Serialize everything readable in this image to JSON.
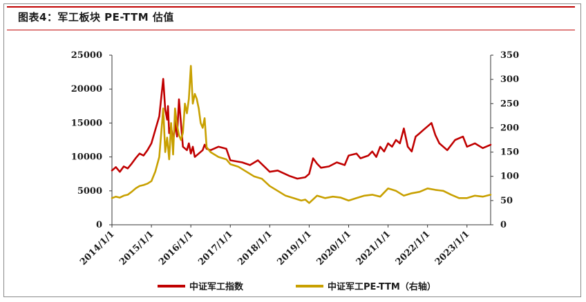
{
  "title": "图表4：军工板块 PE-TTM 估值",
  "colors": {
    "accent": "#c00000",
    "series_index": "#c00000",
    "series_pe": "#c8a000"
  },
  "chart_data": {
    "type": "line",
    "title": "图表4：军工板块 PE-TTM 估值",
    "xlabel": "",
    "ylabel": "",
    "x_ticks": [
      "2014/1/1",
      "2015/1/1",
      "2016/1/1",
      "2017/1/1",
      "2018/1/1",
      "2019/1/1",
      "2020/1/1",
      "2021/1/1",
      "2022/1/1",
      "2023/1/1"
    ],
    "x_range": [
      2014.0,
      2023.6
    ],
    "y_left_ticks": [
      "0",
      "5000",
      "10000",
      "15000",
      "20000",
      "25000"
    ],
    "y_left_range": [
      0,
      25000
    ],
    "y_right_ticks": [
      "0",
      "50",
      "100",
      "150",
      "200",
      "250",
      "300",
      "350"
    ],
    "y_right_range": [
      0,
      350
    ],
    "legend_position": "bottom",
    "grid": false,
    "series": [
      {
        "name": "中证军工指数",
        "axis": "left",
        "color": "#c00000",
        "x": [
          2014.0,
          2014.1,
          2014.2,
          2014.3,
          2014.4,
          2014.5,
          2014.6,
          2014.7,
          2014.8,
          2014.9,
          2015.0,
          2015.1,
          2015.2,
          2015.3,
          2015.35,
          2015.4,
          2015.42,
          2015.45,
          2015.5,
          2015.55,
          2015.6,
          2015.62,
          2015.65,
          2015.7,
          2015.8,
          2015.9,
          2015.95,
          2016.0,
          2016.05,
          2016.1,
          2016.2,
          2016.3,
          2016.35,
          2016.4,
          2016.5,
          2016.7,
          2016.9,
          2017.0,
          2017.3,
          2017.5,
          2017.7,
          2018.0,
          2018.2,
          2018.5,
          2018.7,
          2018.9,
          2019.0,
          2019.1,
          2019.2,
          2019.3,
          2019.5,
          2019.7,
          2019.9,
          2020.0,
          2020.2,
          2020.3,
          2020.5,
          2020.6,
          2020.7,
          2020.8,
          2020.9,
          2021.0,
          2021.1,
          2021.2,
          2021.3,
          2021.4,
          2021.5,
          2021.6,
          2021.7,
          2021.8,
          2021.9,
          2022.0,
          2022.1,
          2022.2,
          2022.3,
          2022.5,
          2022.7,
          2022.9,
          2023.0,
          2023.2,
          2023.4,
          2023.6
        ],
        "values": [
          8000,
          8500,
          7800,
          8600,
          8300,
          9000,
          9800,
          10500,
          10200,
          11000,
          12000,
          14000,
          16000,
          21500,
          17000,
          15500,
          17500,
          13500,
          14500,
          12500,
          14000,
          15500,
          13000,
          18500,
          11500,
          11000,
          12000,
          10500,
          11500,
          10000,
          10500,
          11000,
          11800,
          11200,
          11000,
          11500,
          11200,
          9500,
          9200,
          8800,
          9500,
          7800,
          8000,
          7200,
          6800,
          7000,
          7500,
          9800,
          9000,
          8400,
          8600,
          9200,
          8800,
          10200,
          10500,
          9800,
          10200,
          10800,
          10000,
          11500,
          10800,
          12000,
          11500,
          12500,
          12000,
          14200,
          11500,
          10800,
          13000,
          13500,
          14000,
          14500,
          15000,
          13200,
          12000,
          11000,
          12500,
          13000,
          11500,
          12000,
          11300,
          11800
        ]
      },
      {
        "name": "中证军工PE-TTM（右轴）",
        "axis": "right",
        "color": "#c8a000",
        "x": [
          2014.0,
          2014.1,
          2014.2,
          2014.3,
          2014.4,
          2014.5,
          2014.6,
          2014.7,
          2014.8,
          2014.9,
          2015.0,
          2015.1,
          2015.2,
          2015.3,
          2015.35,
          2015.4,
          2015.45,
          2015.5,
          2015.55,
          2015.6,
          2015.65,
          2015.7,
          2015.75,
          2015.8,
          2015.85,
          2015.9,
          2015.95,
          2016.0,
          2016.05,
          2016.1,
          2016.15,
          2016.2,
          2016.25,
          2016.3,
          2016.35,
          2016.4,
          2016.5,
          2016.7,
          2016.9,
          2017.0,
          2017.2,
          2017.4,
          2017.6,
          2017.8,
          2018.0,
          2018.2,
          2018.4,
          2018.6,
          2018.8,
          2018.9,
          2019.0,
          2019.2,
          2019.4,
          2019.6,
          2019.8,
          2020.0,
          2020.2,
          2020.4,
          2020.6,
          2020.8,
          2021.0,
          2021.2,
          2021.4,
          2021.6,
          2021.8,
          2022.0,
          2022.2,
          2022.4,
          2022.6,
          2022.8,
          2023.0,
          2023.2,
          2023.4,
          2023.6
        ],
        "values": [
          55,
          58,
          56,
          60,
          62,
          68,
          75,
          80,
          82,
          85,
          90,
          110,
          140,
          240,
          150,
          180,
          135,
          210,
          145,
          240,
          205,
          185,
          175,
          190,
          250,
          230,
          260,
          328,
          250,
          270,
          260,
          240,
          210,
          200,
          220,
          160,
          150,
          140,
          135,
          125,
          120,
          110,
          100,
          95,
          80,
          70,
          60,
          55,
          50,
          52,
          45,
          60,
          55,
          58,
          56,
          50,
          55,
          60,
          62,
          58,
          75,
          70,
          60,
          65,
          68,
          75,
          72,
          70,
          62,
          55,
          55,
          60,
          58,
          62
        ]
      }
    ]
  },
  "legend": [
    {
      "label": "中证军工指数",
      "color": "#c00000"
    },
    {
      "label": "中证军工PE-TTM（右轴）",
      "color": "#c8a000"
    }
  ]
}
